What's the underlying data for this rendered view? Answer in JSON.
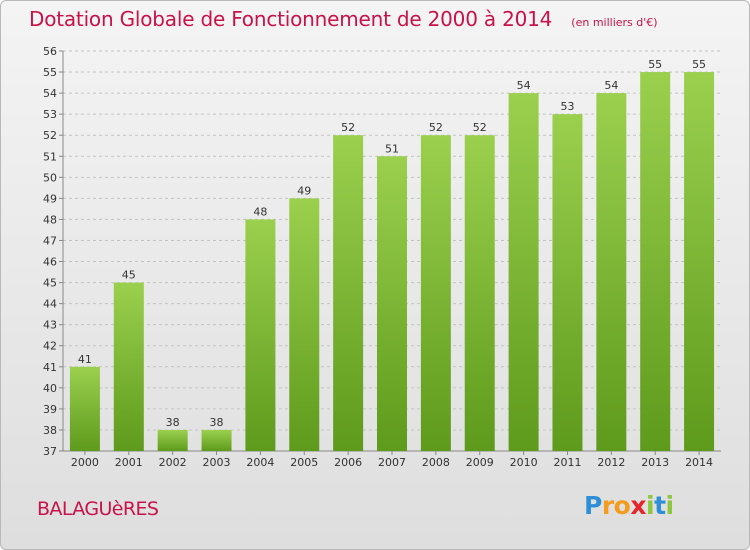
{
  "header": {
    "title": "Dotation Globale de Fonctionnement de 2000 à 2014",
    "subtitle": "(en milliers d'€)"
  },
  "footer": {
    "place": "BALAGUèRES",
    "brand": "Proxiti",
    "brand_letters": [
      {
        "ch": "P",
        "color": "#2f8fd6"
      },
      {
        "ch": "r",
        "color": "#f39c1f"
      },
      {
        "ch": "o",
        "color": "#f39c1f"
      },
      {
        "ch": "x",
        "color": "#e4262c"
      },
      {
        "ch": "i",
        "color": "#8dc63f"
      },
      {
        "ch": "t",
        "color": "#2f8fd6"
      },
      {
        "ch": "i",
        "color": "#8dc63f"
      }
    ]
  },
  "colors": {
    "accent": "#c8124a",
    "bar_top": "#9bd04e",
    "bar_bottom": "#5e9a1c",
    "grid": "#c4c4c4",
    "axis_text": "#333333"
  },
  "chart_data": {
    "type": "bar",
    "title": "Dotation Globale de Fonctionnement de 2000 à 2014",
    "subtitle": "(en milliers d'€)",
    "categories": [
      "2000",
      "2001",
      "2002",
      "2003",
      "2004",
      "2005",
      "2006",
      "2007",
      "2008",
      "2009",
      "2010",
      "2011",
      "2012",
      "2013",
      "2014"
    ],
    "values": [
      41,
      45,
      38,
      38,
      48,
      49,
      52,
      51,
      52,
      52,
      54,
      53,
      54,
      55,
      55
    ],
    "ylim": [
      37,
      56
    ],
    "yticks": [
      37,
      38,
      39,
      40,
      41,
      42,
      43,
      44,
      45,
      46,
      47,
      48,
      49,
      50,
      51,
      52,
      53,
      54,
      55,
      56
    ],
    "grid": true,
    "data_labels": true
  }
}
